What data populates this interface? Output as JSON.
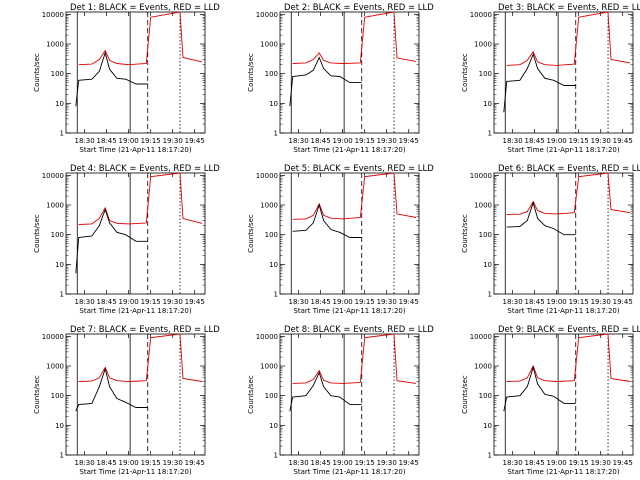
{
  "panels": [
    {
      "title": "Det  1:  BLACK = Events, RED = LLD",
      "xlabel": "Start Time (21-Apr-11 18:17:20)",
      "ylabel": "Counts/sec",
      "xticks": [
        "18:30",
        "18:45",
        "19:00",
        "19:15",
        "19:30",
        "19:45"
      ],
      "yticks": [
        "1",
        "10",
        "100",
        "1000",
        "10000"
      ]
    },
    {
      "title": "Det  2:  BLACK = Events, RED = LLD",
      "xlabel": "Start Time (21-Apr-11 18:17:20)",
      "ylabel": "Counts/sec",
      "xticks": [
        "18:30",
        "18:45",
        "19:00",
        "19:15",
        "19:30",
        "19:45"
      ],
      "yticks": [
        "1",
        "10",
        "100",
        "1000",
        "10000"
      ]
    },
    {
      "title": "Det  3:  BLACK = Events, RED = LLD",
      "xlabel": "Start Time (21-Apr-11 18:17:20)",
      "ylabel": "Counts/sec",
      "xticks": [
        "18:30",
        "18:45",
        "19:00",
        "19:15",
        "19:30",
        "19:45"
      ],
      "yticks": [
        "1",
        "10",
        "100",
        "1000",
        "10000"
      ]
    },
    {
      "title": "Det  4:  BLACK = Events, RED = LLD",
      "xlabel": "Start Time (21-Apr-11 18:17:20)",
      "ylabel": "Counts/sec",
      "xticks": [
        "18:30",
        "18:45",
        "19:00",
        "19:15",
        "19:30",
        "19:45"
      ],
      "yticks": [
        "1",
        "10",
        "100",
        "1000",
        "10000"
      ]
    },
    {
      "title": "Det  5:  BLACK = Events, RED = LLD",
      "xlabel": "Start Time (21-Apr-11 18:17:20)",
      "ylabel": "Counts/sec",
      "xticks": [
        "18:30",
        "18:45",
        "19:00",
        "19:15",
        "19:30",
        "19:45"
      ],
      "yticks": [
        "1",
        "10",
        "100",
        "1000",
        "10000"
      ]
    },
    {
      "title": "Det  6:  BLACK = Events, RED = LLD",
      "xlabel": "Start Time (21-Apr-11 18:17:20)",
      "ylabel": "Counts/sec",
      "xticks": [
        "18:30",
        "18:45",
        "19:00",
        "19:15",
        "19:30",
        "19:45"
      ],
      "yticks": [
        "1",
        "10",
        "100",
        "1000",
        "10000"
      ]
    },
    {
      "title": "Det  7:  BLACK = Events, RED = LLD",
      "xlabel": "Start Time (21-Apr-11 18:17:20)",
      "ylabel": "Counts/sec",
      "xticks": [
        "18:30",
        "18:45",
        "19:00",
        "19:15",
        "19:30",
        "19:45"
      ],
      "yticks": [
        "1",
        "10",
        "100",
        "1000",
        "10000"
      ]
    },
    {
      "title": "Det  8:  BLACK = Events, RED = LLD",
      "xlabel": "Start Time (21-Apr-11 18:17:20)",
      "ylabel": "Counts/sec",
      "xticks": [
        "18:30",
        "18:45",
        "19:00",
        "19:15",
        "19:30",
        "19:45"
      ],
      "yticks": [
        "1",
        "10",
        "100",
        "1000",
        "10000"
      ]
    },
    {
      "title": "Det  9:  BLACK = Events, RED = LLD",
      "xlabel": "Start Time (21-Apr-11 18:17:20)",
      "ylabel": "Counts/sec",
      "xticks": [
        "18:30",
        "18:45",
        "19:00",
        "19:15",
        "19:30",
        "19:45"
      ],
      "yticks": [
        "1",
        "10",
        "100",
        "1000",
        "10000"
      ]
    }
  ],
  "chart_data": {
    "type": "line",
    "layout": "3x3 grid",
    "x_unit": "time (HH:MM)",
    "y_scale": "log",
    "xlim": [
      "18:17:20",
      "19:52"
    ],
    "ylim": [
      1,
      12000
    ],
    "grid": false,
    "legend": "none",
    "colors": {
      "events": "#000000",
      "lld": "#e00000"
    },
    "vertical_lines": [
      {
        "x": "18:25",
        "style": "solid"
      },
      {
        "x": "19:01",
        "style": "solid"
      },
      {
        "x": "19:13",
        "style": "dashed"
      },
      {
        "x": "19:35",
        "style": "dotted"
      }
    ],
    "curves": [
      {
        "detector": 1,
        "events": [
          [
            "18:24",
            8
          ],
          [
            "18:26",
            60
          ],
          [
            "18:35",
            65
          ],
          [
            "18:40",
            120
          ],
          [
            "18:44",
            500
          ],
          [
            "18:47",
            140
          ],
          [
            "18:52",
            70
          ],
          [
            "18:58",
            65
          ],
          [
            "19:05",
            45
          ],
          [
            "19:13",
            45
          ]
        ],
        "lld": [
          [
            "18:26",
            200
          ],
          [
            "18:35",
            210
          ],
          [
            "18:40",
            300
          ],
          [
            "18:44",
            600
          ],
          [
            "18:47",
            280
          ],
          [
            "18:52",
            220
          ],
          [
            "19:00",
            200
          ],
          [
            "19:12",
            220
          ],
          [
            "19:15",
            8000
          ],
          [
            "19:35",
            12000
          ],
          [
            "19:37",
            350
          ],
          [
            "19:50",
            250
          ]
        ]
      },
      {
        "detector": 2,
        "events": [
          [
            "18:24",
            8
          ],
          [
            "18:26",
            80
          ],
          [
            "18:35",
            90
          ],
          [
            "18:40",
            130
          ],
          [
            "18:44",
            350
          ],
          [
            "18:47",
            150
          ],
          [
            "18:52",
            85
          ],
          [
            "18:58",
            80
          ],
          [
            "19:05",
            50
          ],
          [
            "19:13",
            50
          ]
        ],
        "lld": [
          [
            "18:26",
            220
          ],
          [
            "18:35",
            230
          ],
          [
            "18:40",
            300
          ],
          [
            "18:44",
            500
          ],
          [
            "18:47",
            280
          ],
          [
            "18:52",
            230
          ],
          [
            "19:00",
            220
          ],
          [
            "19:12",
            230
          ],
          [
            "19:15",
            8000
          ],
          [
            "19:35",
            12000
          ],
          [
            "19:37",
            340
          ],
          [
            "19:50",
            260
          ]
        ]
      },
      {
        "detector": 3,
        "events": [
          [
            "18:24",
            5
          ],
          [
            "18:26",
            55
          ],
          [
            "18:35",
            60
          ],
          [
            "18:40",
            150
          ],
          [
            "18:44",
            450
          ],
          [
            "18:47",
            150
          ],
          [
            "18:52",
            70
          ],
          [
            "18:58",
            60
          ],
          [
            "19:05",
            40
          ],
          [
            "19:13",
            40
          ]
        ],
        "lld": [
          [
            "18:26",
            190
          ],
          [
            "18:35",
            200
          ],
          [
            "18:40",
            280
          ],
          [
            "18:44",
            550
          ],
          [
            "18:47",
            250
          ],
          [
            "18:52",
            200
          ],
          [
            "19:00",
            190
          ],
          [
            "19:12",
            210
          ],
          [
            "19:15",
            8000
          ],
          [
            "19:35",
            12000
          ],
          [
            "19:37",
            300
          ],
          [
            "19:50",
            230
          ]
        ]
      },
      {
        "detector": 4,
        "events": [
          [
            "18:24",
            5
          ],
          [
            "18:26",
            80
          ],
          [
            "18:35",
            90
          ],
          [
            "18:40",
            200
          ],
          [
            "18:44",
            700
          ],
          [
            "18:47",
            250
          ],
          [
            "18:52",
            120
          ],
          [
            "18:58",
            100
          ],
          [
            "19:05",
            60
          ],
          [
            "19:13",
            60
          ]
        ],
        "lld": [
          [
            "18:26",
            220
          ],
          [
            "18:35",
            230
          ],
          [
            "18:40",
            350
          ],
          [
            "18:44",
            800
          ],
          [
            "18:47",
            300
          ],
          [
            "18:52",
            240
          ],
          [
            "19:00",
            230
          ],
          [
            "19:12",
            250
          ],
          [
            "19:15",
            9000
          ],
          [
            "19:35",
            12000
          ],
          [
            "19:37",
            350
          ],
          [
            "19:50",
            240
          ]
        ]
      },
      {
        "detector": 5,
        "events": [
          [
            "18:26",
            130
          ],
          [
            "18:35",
            140
          ],
          [
            "18:40",
            250
          ],
          [
            "18:44",
            1000
          ],
          [
            "18:47",
            300
          ],
          [
            "18:52",
            150
          ],
          [
            "18:58",
            120
          ],
          [
            "19:05",
            80
          ],
          [
            "19:13",
            80
          ]
        ],
        "lld": [
          [
            "18:26",
            330
          ],
          [
            "18:35",
            340
          ],
          [
            "18:40",
            450
          ],
          [
            "18:44",
            1100
          ],
          [
            "18:47",
            450
          ],
          [
            "18:52",
            360
          ],
          [
            "19:00",
            340
          ],
          [
            "19:12",
            380
          ],
          [
            "19:15",
            9000
          ],
          [
            "19:35",
            12000
          ],
          [
            "19:37",
            500
          ],
          [
            "19:50",
            380
          ]
        ]
      },
      {
        "detector": 6,
        "events": [
          [
            "18:26",
            180
          ],
          [
            "18:35",
            190
          ],
          [
            "18:40",
            300
          ],
          [
            "18:44",
            1200
          ],
          [
            "18:47",
            350
          ],
          [
            "18:52",
            200
          ],
          [
            "18:58",
            160
          ],
          [
            "19:05",
            100
          ],
          [
            "19:13",
            100
          ]
        ],
        "lld": [
          [
            "18:26",
            480
          ],
          [
            "18:35",
            490
          ],
          [
            "18:40",
            600
          ],
          [
            "18:44",
            1300
          ],
          [
            "18:47",
            650
          ],
          [
            "18:52",
            520
          ],
          [
            "19:00",
            500
          ],
          [
            "19:12",
            550
          ],
          [
            "19:15",
            9000
          ],
          [
            "19:35",
            12000
          ],
          [
            "19:37",
            700
          ],
          [
            "19:50",
            550
          ]
        ]
      },
      {
        "detector": 7,
        "events": [
          [
            "18:24",
            30
          ],
          [
            "18:26",
            50
          ],
          [
            "18:35",
            55
          ],
          [
            "18:40",
            200
          ],
          [
            "18:44",
            800
          ],
          [
            "18:47",
            200
          ],
          [
            "18:52",
            80
          ],
          [
            "18:58",
            60
          ],
          [
            "19:05",
            40
          ],
          [
            "19:13",
            40
          ]
        ],
        "lld": [
          [
            "18:26",
            300
          ],
          [
            "18:35",
            310
          ],
          [
            "18:40",
            400
          ],
          [
            "18:44",
            900
          ],
          [
            "18:47",
            400
          ],
          [
            "18:52",
            320
          ],
          [
            "19:00",
            300
          ],
          [
            "19:12",
            320
          ],
          [
            "19:15",
            9000
          ],
          [
            "19:35",
            12000
          ],
          [
            "19:37",
            380
          ],
          [
            "19:50",
            300
          ]
        ]
      },
      {
        "detector": 8,
        "events": [
          [
            "18:24",
            30
          ],
          [
            "18:26",
            90
          ],
          [
            "18:35",
            100
          ],
          [
            "18:40",
            220
          ],
          [
            "18:44",
            600
          ],
          [
            "18:47",
            200
          ],
          [
            "18:52",
            100
          ],
          [
            "18:58",
            90
          ],
          [
            "19:05",
            50
          ],
          [
            "19:13",
            50
          ]
        ],
        "lld": [
          [
            "18:26",
            260
          ],
          [
            "18:35",
            270
          ],
          [
            "18:40",
            350
          ],
          [
            "18:44",
            700
          ],
          [
            "18:47",
            330
          ],
          [
            "18:52",
            270
          ],
          [
            "19:00",
            260
          ],
          [
            "19:12",
            280
          ],
          [
            "19:15",
            9000
          ],
          [
            "19:35",
            12000
          ],
          [
            "19:37",
            320
          ],
          [
            "19:50",
            260
          ]
        ]
      },
      {
        "detector": 9,
        "events": [
          [
            "18:24",
            30
          ],
          [
            "18:26",
            90
          ],
          [
            "18:35",
            100
          ],
          [
            "18:40",
            200
          ],
          [
            "18:44",
            900
          ],
          [
            "18:47",
            250
          ],
          [
            "18:52",
            110
          ],
          [
            "18:58",
            95
          ],
          [
            "19:05",
            55
          ],
          [
            "19:13",
            55
          ]
        ],
        "lld": [
          [
            "18:26",
            300
          ],
          [
            "18:35",
            310
          ],
          [
            "18:40",
            400
          ],
          [
            "18:44",
            1000
          ],
          [
            "18:47",
            400
          ],
          [
            "18:52",
            320
          ],
          [
            "19:00",
            300
          ],
          [
            "19:12",
            320
          ],
          [
            "19:15",
            9000
          ],
          [
            "19:35",
            12000
          ],
          [
            "19:37",
            380
          ],
          [
            "19:50",
            300
          ]
        ]
      }
    ]
  }
}
